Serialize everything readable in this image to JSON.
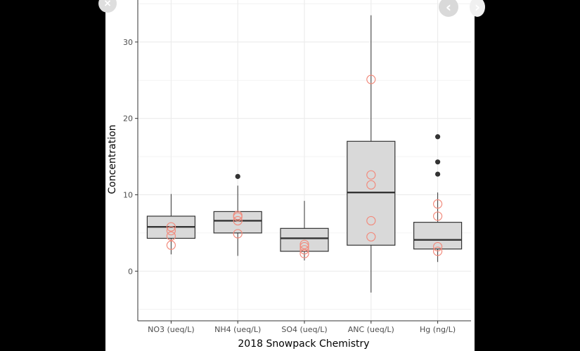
{
  "viewer": {
    "close_glyph": "×",
    "prev_glyph": "‹",
    "next_glyph": "›"
  },
  "colors": {
    "box_fill": "#d9d9d9",
    "box_stroke": "#333333",
    "outlier": "#333333",
    "jitter_points": "#f28b7d",
    "grid": "#ebebeb"
  },
  "chart_data": {
    "type": "boxplot",
    "xlabel": "2018 Snowpack Chemistry",
    "ylabel": "Concentration",
    "ylim": [
      -6.5,
      35.5
    ],
    "yticks": [
      0,
      10,
      20,
      30
    ],
    "grid": true,
    "legend": "none",
    "categories": [
      "NO3 (ueq/L)",
      "NH4 (ueq/L)",
      "SO4 (ueq/L)",
      "ANC (ueq/L)",
      "Hg (ng/L)"
    ],
    "boxes": [
      {
        "category": "NO3 (ueq/L)",
        "whisker_low": 2.2,
        "q1": 4.3,
        "median": 5.8,
        "q3": 7.2,
        "whisker_high": 10.1,
        "outliers": [],
        "points": [
          3.4,
          4.6,
          5.3,
          5.8
        ]
      },
      {
        "category": "NH4 (ueq/L)",
        "whisker_low": 2.0,
        "q1": 5.0,
        "median": 6.6,
        "q3": 7.8,
        "whisker_high": 11.2,
        "outliers": [
          12.4
        ],
        "points": [
          4.9,
          6.6,
          7.1,
          7.3
        ]
      },
      {
        "category": "SO4 (ueq/L)",
        "whisker_low": 1.4,
        "q1": 2.6,
        "median": 4.3,
        "q3": 5.6,
        "whisker_high": 9.2,
        "outliers": [],
        "points": [
          2.3,
          2.8,
          3.2,
          3.5
        ]
      },
      {
        "category": "ANC (ueq/L)",
        "whisker_low": -2.8,
        "q1": 3.4,
        "median": 10.3,
        "q3": 17.0,
        "whisker_high": 33.5,
        "outliers": [],
        "points": [
          4.5,
          6.6,
          11.3,
          12.6,
          25.1
        ]
      },
      {
        "category": "Hg (ng/L)",
        "whisker_low": 1.2,
        "q1": 2.9,
        "median": 4.1,
        "q3": 6.4,
        "whisker_high": 10.3,
        "outliers": [
          12.7,
          14.3,
          17.6
        ],
        "points": [
          2.6,
          3.2,
          7.2,
          8.8
        ]
      }
    ]
  }
}
